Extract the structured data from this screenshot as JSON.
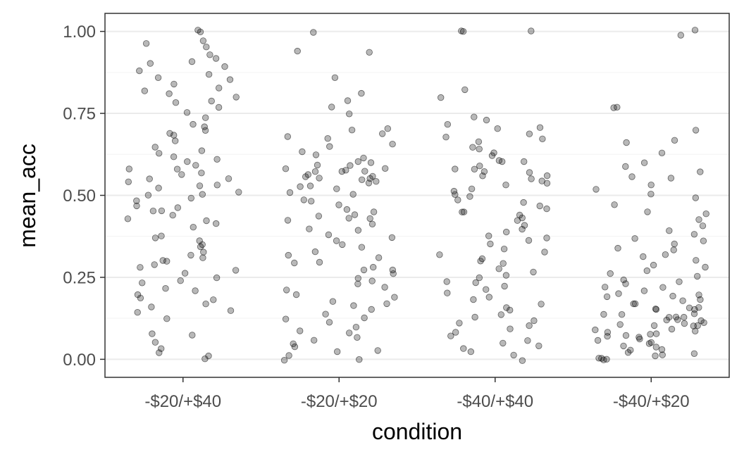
{
  "chart_data": {
    "type": "scatter",
    "title": "",
    "xlabel": "condition",
    "ylabel": "mean_acc",
    "categories": [
      "-$20/+$40",
      "-$20/+$20",
      "-$40/+$40",
      "-$40/+$20"
    ],
    "ylim": [
      -0.055,
      1.055
    ],
    "yticks": [
      "0.00",
      "0.25",
      "0.50",
      "0.75",
      "1.00"
    ],
    "grid": true,
    "legend": "none",
    "point_color": "#000000",
    "point_alpha": 0.3,
    "series": [
      {
        "category": "-$20/+$40",
        "values": [
          1.0,
          1.0,
          0.97,
          0.96,
          0.95,
          0.93,
          0.92,
          0.91,
          0.9,
          0.89,
          0.88,
          0.87,
          0.86,
          0.85,
          0.84,
          0.83,
          0.82,
          0.81,
          0.8,
          0.79,
          0.78,
          0.77,
          0.75,
          0.74,
          0.72,
          0.71,
          0.7,
          0.69,
          0.68,
          0.67,
          0.65,
          0.64,
          0.63,
          0.62,
          0.61,
          0.6,
          0.59,
          0.58,
          0.58,
          0.57,
          0.56,
          0.55,
          0.55,
          0.54,
          0.53,
          0.53,
          0.52,
          0.51,
          0.5,
          0.5,
          0.49,
          0.48,
          0.47,
          0.46,
          0.45,
          0.45,
          0.44,
          0.43,
          0.42,
          0.41,
          0.4,
          0.38,
          0.37,
          0.36,
          0.35,
          0.34,
          0.33,
          0.32,
          0.31,
          0.3,
          0.3,
          0.29,
          0.28,
          0.27,
          0.26,
          0.25,
          0.24,
          0.23,
          0.22,
          0.21,
          0.2,
          0.19,
          0.18,
          0.17,
          0.16,
          0.15,
          0.14,
          0.12,
          0.08,
          0.07,
          0.05,
          0.03,
          0.02,
          0.01,
          0.0
        ]
      },
      {
        "category": "-$20/+$20",
        "values": [
          1.0,
          0.94,
          0.94,
          0.86,
          0.81,
          0.79,
          0.77,
          0.75,
          0.7,
          0.7,
          0.69,
          0.68,
          0.67,
          0.66,
          0.65,
          0.63,
          0.62,
          0.61,
          0.6,
          0.6,
          0.59,
          0.59,
          0.58,
          0.58,
          0.58,
          0.57,
          0.57,
          0.57,
          0.56,
          0.56,
          0.56,
          0.55,
          0.55,
          0.55,
          0.54,
          0.54,
          0.53,
          0.53,
          0.52,
          0.51,
          0.5,
          0.49,
          0.48,
          0.47,
          0.46,
          0.45,
          0.44,
          0.44,
          0.43,
          0.43,
          0.42,
          0.41,
          0.4,
          0.39,
          0.38,
          0.37,
          0.36,
          0.35,
          0.34,
          0.33,
          0.32,
          0.31,
          0.3,
          0.29,
          0.28,
          0.27,
          0.27,
          0.26,
          0.25,
          0.24,
          0.23,
          0.22,
          0.21,
          0.2,
          0.19,
          0.18,
          0.17,
          0.16,
          0.15,
          0.14,
          0.13,
          0.12,
          0.11,
          0.1,
          0.09,
          0.08,
          0.07,
          0.06,
          0.05,
          0.04,
          0.03,
          0.02,
          0.01,
          0.0,
          0.0
        ]
      },
      {
        "category": "-$40/+$40",
        "values": [
          1.0,
          1.0,
          1.0,
          0.82,
          0.8,
          0.74,
          0.73,
          0.72,
          0.71,
          0.7,
          0.69,
          0.68,
          0.67,
          0.66,
          0.65,
          0.64,
          0.63,
          0.62,
          0.61,
          0.6,
          0.6,
          0.59,
          0.58,
          0.58,
          0.57,
          0.57,
          0.56,
          0.56,
          0.55,
          0.54,
          0.54,
          0.53,
          0.52,
          0.51,
          0.5,
          0.5,
          0.49,
          0.48,
          0.47,
          0.46,
          0.45,
          0.45,
          0.44,
          0.43,
          0.42,
          0.41,
          0.4,
          0.39,
          0.38,
          0.37,
          0.36,
          0.35,
          0.34,
          0.33,
          0.32,
          0.31,
          0.3,
          0.29,
          0.28,
          0.27,
          0.26,
          0.25,
          0.24,
          0.23,
          0.22,
          0.21,
          0.2,
          0.19,
          0.18,
          0.17,
          0.16,
          0.15,
          0.14,
          0.13,
          0.12,
          0.11,
          0.1,
          0.09,
          0.08,
          0.07,
          0.06,
          0.05,
          0.04,
          0.03,
          0.02,
          0.01,
          0.0
        ]
      },
      {
        "category": "-$40/+$20",
        "values": [
          1.0,
          0.99,
          0.77,
          0.77,
          0.7,
          0.67,
          0.66,
          0.63,
          0.6,
          0.59,
          0.57,
          0.56,
          0.55,
          0.53,
          0.52,
          0.5,
          0.49,
          0.47,
          0.45,
          0.44,
          0.43,
          0.41,
          0.39,
          0.38,
          0.37,
          0.36,
          0.35,
          0.34,
          0.33,
          0.32,
          0.31,
          0.3,
          0.29,
          0.28,
          0.27,
          0.26,
          0.25,
          0.24,
          0.24,
          0.23,
          0.22,
          0.22,
          0.21,
          0.2,
          0.2,
          0.19,
          0.19,
          0.18,
          0.18,
          0.17,
          0.17,
          0.16,
          0.16,
          0.15,
          0.15,
          0.15,
          0.14,
          0.14,
          0.14,
          0.13,
          0.13,
          0.13,
          0.12,
          0.12,
          0.12,
          0.11,
          0.11,
          0.11,
          0.1,
          0.1,
          0.1,
          0.09,
          0.09,
          0.09,
          0.08,
          0.08,
          0.08,
          0.07,
          0.07,
          0.07,
          0.06,
          0.06,
          0.05,
          0.05,
          0.04,
          0.04,
          0.03,
          0.03,
          0.02,
          0.02,
          0.01,
          0.01,
          0.0,
          0.0,
          0.0,
          0.0
        ]
      }
    ]
  }
}
